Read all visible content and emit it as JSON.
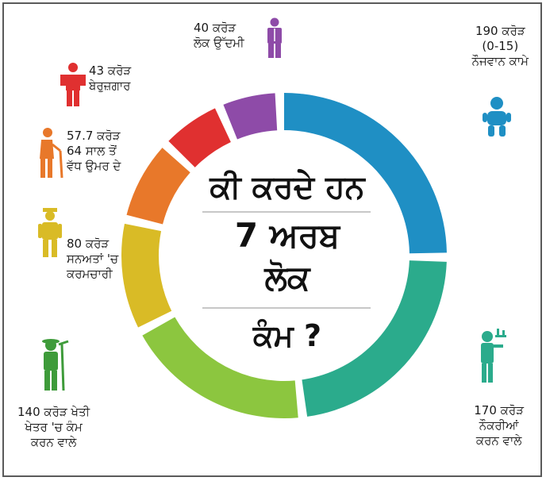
{
  "title": {
    "line1": "ਕੀ ਕਰਦੇ ਹਨ",
    "line2": "7 ਅਰਬ",
    "line3": "ਲੋਕ",
    "line4": "ਕੰਮ ?"
  },
  "colors": {
    "young": "#1f8fc4",
    "jobs": "#2bab8c",
    "farm": "#8cc63f",
    "staff": "#d9bb26",
    "elderly": "#e8782a",
    "unemployed": "#e03030",
    "entrepreneur": "#8e4ba8"
  },
  "icons": {
    "young": "baby-icon",
    "jobs": "waiter-icon",
    "farm": "farmer-icon",
    "staff": "worker-icon",
    "elderly": "elderly-person-icon",
    "unemployed": "unemployed-person-icon",
    "entrepreneur": "businessman-icon"
  },
  "chart_data": {
    "type": "pie",
    "variant": "donut",
    "categories": [
      "ਨੌਜਵਾਨ ਕਾਮੇ",
      "ਨੌਕਰੀਆਂ ਕਰਨ ਵਾਲੇ",
      "ਖੇਤੀ ਖੇਤਰ 'ਚ ਕੰਮ ਕਰਨ ਵਾਲੇ",
      "ਸਨਅਤਾਂ 'ਚ ਕਰਮਚਾਰੀ",
      "64 ਸਾਲ ਤੋਂ ਵੱਧ ਉਮਰ ਦੇ",
      "ਬੇਰੁਜ਼ਗਾਰ",
      "ਲੋਕ ਉੱਦਮੀ"
    ],
    "values": [
      190,
      170,
      140,
      80,
      57.7,
      43,
      40
    ],
    "labels": {
      "young": [
        "190 ਕਰੋੜ",
        "(0-15)",
        "ਨੌਜਵਾਨ ਕਾਮੇ"
      ],
      "jobs": [
        "170 ਕਰੋੜ",
        "ਨੌਕਰੀਆਂ",
        "ਕਰਨ ਵਾਲੇ"
      ],
      "farm": [
        "140 ਕਰੋੜ ਖੇਤੀ",
        "ਖੇਤਰ 'ਚ ਕੰਮ",
        "ਕਰਨ ਵਾਲੇ"
      ],
      "staff": [
        "80 ਕਰੋੜ",
        "ਸਨਅਤਾਂ 'ਚ",
        "ਕਰਮਚਾਰੀ"
      ],
      "elderly": [
        "57.7 ਕਰੋੜ",
        "64 ਸਾਲ ਤੋਂ",
        "ਵੱਧ ਉਮਰ ਦੇ"
      ],
      "unemployed": [
        "43 ਕਰੋੜ",
        "ਬੇਰੁਜ਼ਗਾਰ"
      ],
      "entrepreneur": [
        "40 ਕਰੋੜ",
        "ਲੋਕ ਉੱਦਮੀ"
      ]
    },
    "unit": "ਕਰੋੜ"
  }
}
